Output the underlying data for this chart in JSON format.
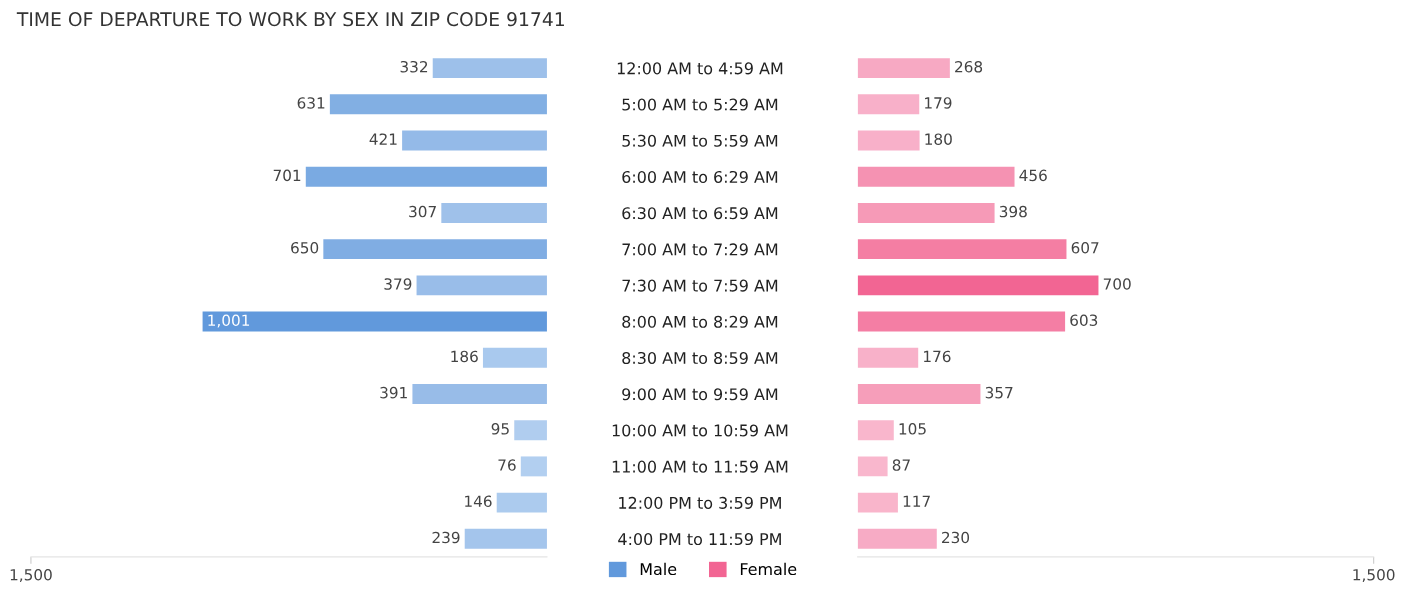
{
  "chart_data": [
    {
      "type": "bar",
      "orientation": "horizontal",
      "title": "TIME OF DEPARTURE TO WORK BY SEX IN ZIP CODE 91741",
      "categories": [
        "12:00 AM to 4:59 AM",
        "5:00 AM to 5:29 AM",
        "5:30 AM to 5:59 AM",
        "6:00 AM to 6:29 AM",
        "6:30 AM to 6:59 AM",
        "7:00 AM to 7:29 AM",
        "7:30 AM to 7:59 AM",
        "8:00 AM to 8:29 AM",
        "8:30 AM to 8:59 AM",
        "9:00 AM to 9:59 AM",
        "10:00 AM to 10:59 AM",
        "11:00 AM to 11:59 AM",
        "12:00 PM to 3:59 PM",
        "4:00 PM to 11:59 PM"
      ],
      "series": [
        {
          "name": "Male",
          "color": "#6199dc",
          "values": [
            332,
            631,
            421,
            701,
            307,
            650,
            379,
            1001,
            186,
            391,
            95,
            76,
            146,
            239
          ],
          "value_labels": [
            "332",
            "631",
            "421",
            "701",
            "307",
            "650",
            "379",
            "1,001",
            "186",
            "391",
            "95",
            "76",
            "146",
            "239"
          ],
          "colors": [
            "#9dc0ea",
            "#82afe3",
            "#94bae8",
            "#7aaae2",
            "#9fc1ea",
            "#80ade3",
            "#99bde9",
            "#6199dc",
            "#a9c9ee",
            "#98bce8",
            "#b0cdef",
            "#b2cff0",
            "#accbee",
            "#a4c5ec"
          ]
        }
      ],
      "xlim": [
        1500,
        0
      ],
      "xticks": [
        {
          "value": 1500,
          "label": "1,500"
        }
      ],
      "legend": "bottom",
      "grid": false
    },
    {
      "type": "bar",
      "orientation": "horizontal",
      "categories": [
        null,
        null,
        null,
        null,
        null,
        null,
        null,
        null,
        null,
        null,
        null,
        null,
        null,
        null
      ],
      "series": [
        {
          "name": "Female",
          "color": "#f26593",
          "values": [
            268,
            179,
            180,
            456,
            398,
            607,
            700,
            603,
            176,
            357,
            105,
            87,
            117,
            230
          ],
          "value_labels": [
            "268",
            "179",
            "180",
            "456",
            "398",
            "607",
            "700",
            "603",
            "176",
            "357",
            "105",
            "87",
            "117",
            "230"
          ],
          "colors": [
            "#f7a9c3",
            "#f8b0c9",
            "#f8b0c9",
            "#f592b2",
            "#f69ab7",
            "#f47ea3",
            "#f26593",
            "#f47ea4",
            "#f8b1c9",
            "#f69eba",
            "#f9b6cc",
            "#f9b7cd",
            "#f9b5cb",
            "#f7abc5"
          ]
        }
      ],
      "xlim": [
        0,
        1500
      ],
      "xticks": [
        {
          "value": 1500,
          "label": "1,500"
        }
      ],
      "tick_labels": "x",
      "legend": "bottom",
      "grid": false
    }
  ]
}
